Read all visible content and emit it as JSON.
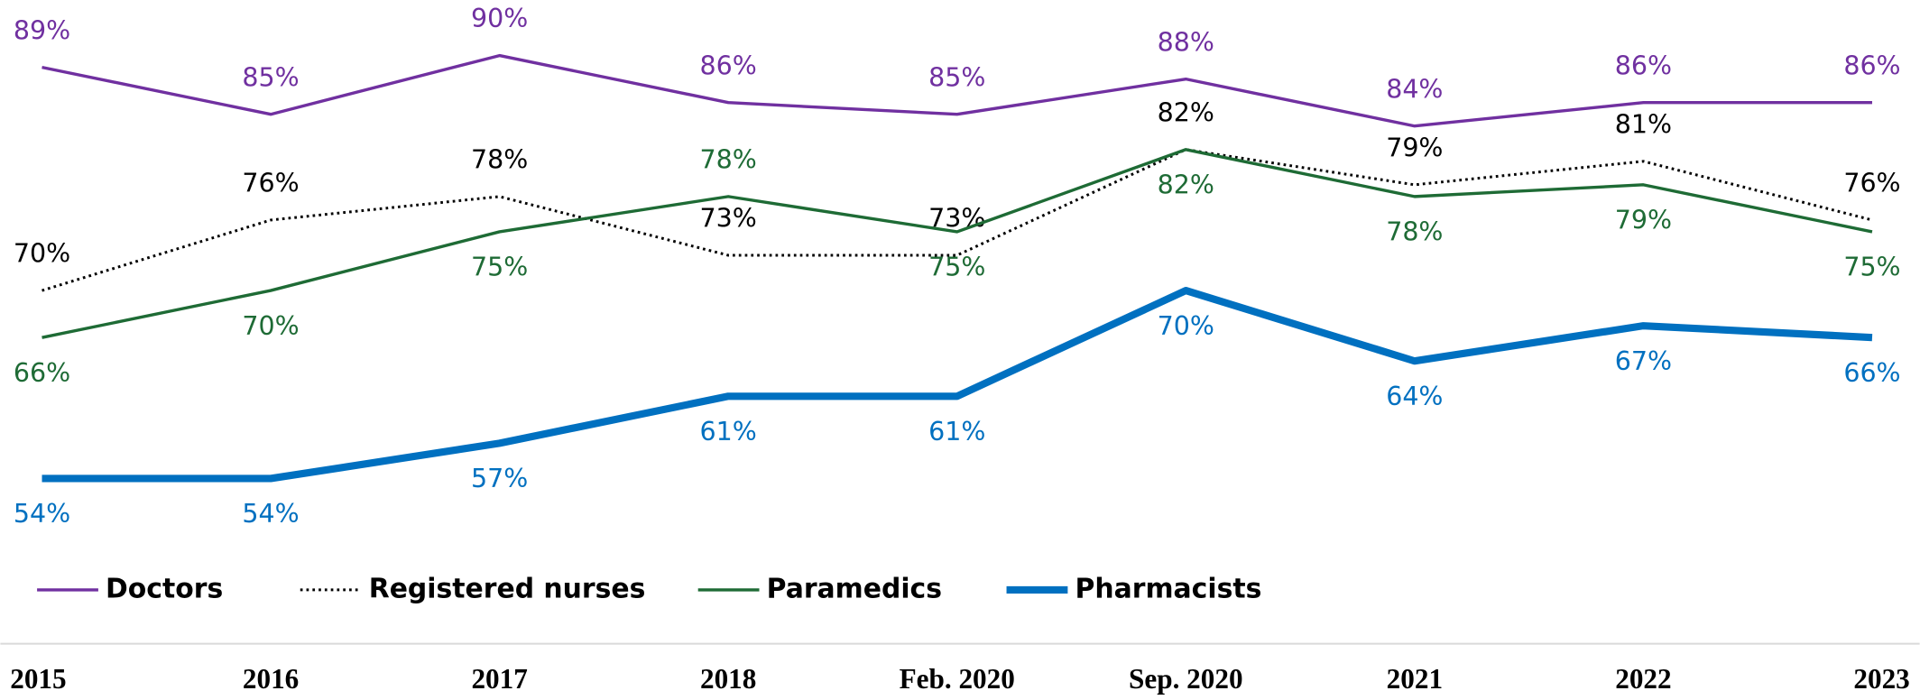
{
  "chart_data": {
    "type": "line",
    "categories": [
      "2015",
      "2016",
      "2017",
      "2018",
      "Feb. 2020",
      "Sep. 2020",
      "2021",
      "2022",
      "2023"
    ],
    "ylim": [
      50,
      94
    ],
    "series": [
      {
        "name": "Doctors",
        "color": "#7030a0",
        "values": [
          89,
          85,
          90,
          86,
          85,
          88,
          84,
          86,
          86
        ],
        "value_labels": [
          "89%",
          "85%",
          "90%",
          "86%",
          "85%",
          "88%",
          "84%",
          "86%",
          "86%"
        ]
      },
      {
        "name": "Registered nurses",
        "color": "#000000",
        "values": [
          70,
          76,
          78,
          73,
          73,
          82,
          79,
          81,
          76
        ],
        "value_labels": [
          "70%",
          "76%",
          "78%",
          "73%",
          "73%",
          "82%",
          "79%",
          "81%",
          "76%"
        ]
      },
      {
        "name": "Paramedics",
        "color": "#1e6b35",
        "values": [
          66,
          70,
          75,
          78,
          75,
          82,
          78,
          79,
          75
        ],
        "value_labels": [
          "66%",
          "70%",
          "75%",
          "78%",
          "75%",
          "82%",
          "78%",
          "79%",
          "75%"
        ]
      },
      {
        "name": "Pharmacists",
        "color": "#0070c0",
        "values": [
          54,
          54,
          57,
          61,
          61,
          70,
          64,
          67,
          66
        ],
        "value_labels": [
          "54%",
          "54%",
          "57%",
          "61%",
          "61%",
          "70%",
          "64%",
          "67%",
          "66%"
        ]
      }
    ]
  }
}
